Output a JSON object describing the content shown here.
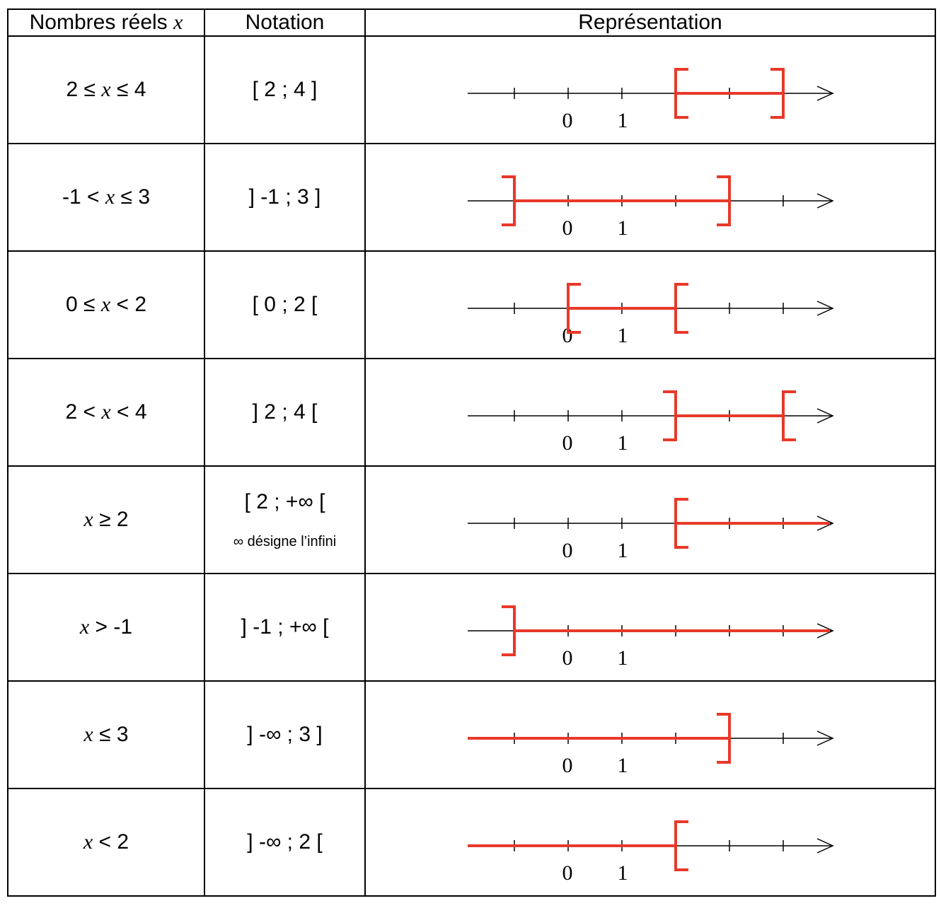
{
  "header": {
    "col1": "Nombres réels",
    "col1_var": "x",
    "col2": "Notation",
    "col3": "Représentation"
  },
  "axis": {
    "label_zero": "0",
    "label_one": "1"
  },
  "colors": {
    "accent": "#e8392a",
    "line": "#000000"
  },
  "rows": [
    {
      "pre": "2 ≤ ",
      "var": "x",
      "post": " ≤ 4",
      "notation": "[ 2 ; 4 ]",
      "note": "",
      "interval": {
        "a": 2,
        "b": 4,
        "left": "closed",
        "right": "closed"
      }
    },
    {
      "pre": "-1 < ",
      "var": "x",
      "post": " ≤ 3",
      "notation": "] -1 ; 3 ]",
      "note": "",
      "interval": {
        "a": -1,
        "b": 3,
        "left": "open",
        "right": "closed"
      }
    },
    {
      "pre": "0 ≤ ",
      "var": "x",
      "post": " < 2",
      "notation": "[ 0 ; 2 [",
      "note": "",
      "interval": {
        "a": 0,
        "b": 2,
        "left": "closed",
        "right": "open"
      }
    },
    {
      "pre": "2 < ",
      "var": "x",
      "post": " < 4",
      "notation": "] 2 ; 4 [",
      "note": "",
      "interval": {
        "a": 2,
        "b": 4,
        "left": "open",
        "right": "open"
      }
    },
    {
      "pre": "",
      "var": "x",
      "post": " ≥ 2",
      "notation": "[ 2 ; +∞ [",
      "note": "∞ désigne l’infini",
      "interval": {
        "a": 2,
        "b": "+inf",
        "left": "closed",
        "right": "none"
      }
    },
    {
      "pre": "",
      "var": "x",
      "post": " > -1",
      "notation": "] -1 ; +∞ [",
      "note": "",
      "interval": {
        "a": -1,
        "b": "+inf",
        "left": "open",
        "right": "none"
      }
    },
    {
      "pre": "",
      "var": "x",
      "post": " ≤ 3",
      "notation": "] -∞ ; 3 ]",
      "note": "",
      "interval": {
        "a": "-inf",
        "b": 3,
        "left": "none",
        "right": "closed"
      }
    },
    {
      "pre": "",
      "var": "x",
      "post": " < 2",
      "notation": "] -∞ ; 2 [",
      "note": "",
      "interval": {
        "a": "-inf",
        "b": 2,
        "left": "none",
        "right": "open"
      }
    }
  ]
}
